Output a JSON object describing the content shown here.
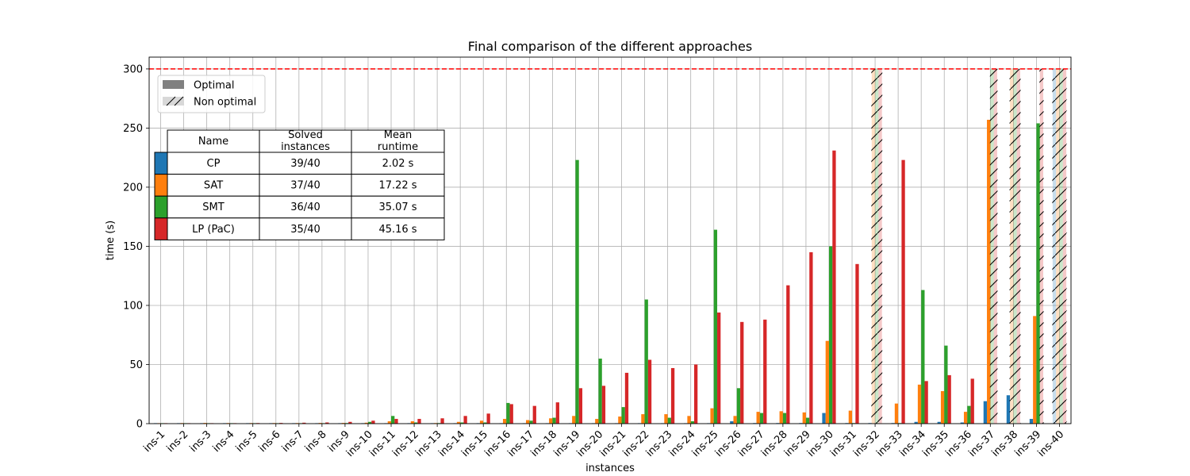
{
  "chart_data": {
    "type": "bar",
    "title": "Final comparison of the different approaches",
    "xlabel": "instances",
    "ylabel": "time (s)",
    "ylim": [
      0,
      310
    ],
    "yticks": [
      0,
      50,
      100,
      150,
      200,
      250,
      300
    ],
    "grid": true,
    "timeout_line": {
      "value": 300,
      "color": "#ff0000",
      "style": "dashed"
    },
    "categories": [
      "ins-1",
      "ins-2",
      "ins-3",
      "ins-4",
      "ins-5",
      "ins-6",
      "ins-7",
      "ins-8",
      "ins-9",
      "ins-10",
      "ins-11",
      "ins-12",
      "ins-13",
      "ins-14",
      "ins-15",
      "ins-16",
      "ins-17",
      "ins-18",
      "ins-19",
      "ins-20",
      "ins-21",
      "ins-22",
      "ins-23",
      "ins-24",
      "ins-25",
      "ins-26",
      "ins-27",
      "ins-28",
      "ins-29",
      "ins-30",
      "ins-31",
      "ins-32",
      "ins-33",
      "ins-34",
      "ins-35",
      "ins-36",
      "ins-37",
      "ins-38",
      "ins-39",
      "ins-40"
    ],
    "series": [
      {
        "name": "CP",
        "color": "#1f77b4",
        "values": [
          0.1,
          0.1,
          0.1,
          0.1,
          0.1,
          0.1,
          0.1,
          0.1,
          0.1,
          0.1,
          0.2,
          0.2,
          0.2,
          0.2,
          0.2,
          0.2,
          0.3,
          0.3,
          0.3,
          0.3,
          0.3,
          0.3,
          0.4,
          0.4,
          0.4,
          2,
          0.5,
          0.5,
          0.5,
          9,
          0.5,
          0.5,
          0.5,
          1.5,
          1.5,
          1,
          19,
          24,
          4,
          300
        ],
        "optimal": [
          true,
          true,
          true,
          true,
          true,
          true,
          true,
          true,
          true,
          true,
          true,
          true,
          true,
          true,
          true,
          true,
          true,
          true,
          true,
          true,
          true,
          true,
          true,
          true,
          true,
          true,
          true,
          true,
          true,
          true,
          true,
          true,
          true,
          true,
          true,
          true,
          true,
          true,
          true,
          false
        ]
      },
      {
        "name": "SAT",
        "color": "#ff7f0e",
        "values": [
          0.3,
          0.5,
          0.6,
          0.5,
          0.5,
          0.5,
          0.5,
          0.6,
          0.6,
          0.8,
          2,
          2,
          0.5,
          1.5,
          2.5,
          4,
          3,
          4.5,
          6.5,
          4,
          6,
          8,
          8,
          6.5,
          13,
          6.5,
          10,
          10.5,
          9.5,
          70,
          11,
          300,
          17,
          33,
          27.5,
          10,
          257,
          300,
          91,
          300
        ],
        "optimal": [
          true,
          true,
          true,
          true,
          true,
          true,
          true,
          true,
          true,
          true,
          true,
          true,
          true,
          true,
          true,
          true,
          true,
          true,
          true,
          true,
          true,
          true,
          true,
          true,
          true,
          true,
          true,
          true,
          true,
          true,
          true,
          false,
          true,
          true,
          true,
          true,
          true,
          false,
          true,
          false
        ]
      },
      {
        "name": "SMT",
        "color": "#2ca02c",
        "values": [
          0.1,
          0.2,
          0.2,
          0.2,
          0.3,
          0.3,
          0.3,
          0.4,
          0.5,
          1.5,
          6.5,
          1,
          0.5,
          1,
          1,
          17.5,
          2.5,
          5,
          223,
          55,
          14,
          105,
          5,
          2,
          164,
          30,
          9,
          9,
          5,
          150,
          0.5,
          300,
          0.5,
          113,
          66,
          15,
          300,
          300,
          254,
          300
        ],
        "optimal": [
          true,
          true,
          true,
          true,
          true,
          true,
          true,
          true,
          true,
          true,
          true,
          true,
          true,
          true,
          true,
          true,
          true,
          true,
          true,
          true,
          true,
          true,
          true,
          true,
          true,
          true,
          true,
          true,
          true,
          true,
          true,
          false,
          true,
          true,
          true,
          true,
          false,
          false,
          true,
          false
        ]
      },
      {
        "name": "LP (PaC)",
        "color": "#d62728",
        "values": [
          0.2,
          0.3,
          0.4,
          0.4,
          0.5,
          0.6,
          0.8,
          1,
          1.5,
          2.5,
          4,
          4,
          4.5,
          6.5,
          8.5,
          16.5,
          15,
          18,
          30,
          32,
          43,
          54,
          47,
          50,
          94,
          86,
          88,
          117,
          145,
          231,
          135,
          300,
          223,
          36,
          41,
          38,
          300,
          300,
          300,
          300
        ],
        "optimal": [
          true,
          true,
          true,
          true,
          true,
          true,
          true,
          true,
          true,
          true,
          true,
          true,
          true,
          true,
          true,
          true,
          true,
          true,
          true,
          true,
          true,
          true,
          true,
          true,
          true,
          true,
          true,
          true,
          true,
          true,
          true,
          false,
          true,
          true,
          true,
          true,
          false,
          false,
          false,
          false
        ]
      }
    ],
    "legend": {
      "placement": "top-left",
      "entries": [
        {
          "label": "Optimal",
          "style": "solid",
          "color": "#808080"
        },
        {
          "label": "Non optimal",
          "style": "hatched",
          "color": "#d8d8d8"
        }
      ]
    },
    "summary_table": {
      "headers": [
        "Name",
        "Solved\ninstances",
        "Mean\nruntime"
      ],
      "rows": [
        {
          "color": "#1f77b4",
          "cells": [
            "CP",
            "39/40",
            "2.02 s"
          ]
        },
        {
          "color": "#ff7f0e",
          "cells": [
            "SAT",
            "37/40",
            "17.22 s"
          ]
        },
        {
          "color": "#2ca02c",
          "cells": [
            "SMT",
            "36/40",
            "35.07 s"
          ]
        },
        {
          "color": "#d62728",
          "cells": [
            "LP (PaC)",
            "35/40",
            "45.16 s"
          ]
        }
      ]
    }
  }
}
